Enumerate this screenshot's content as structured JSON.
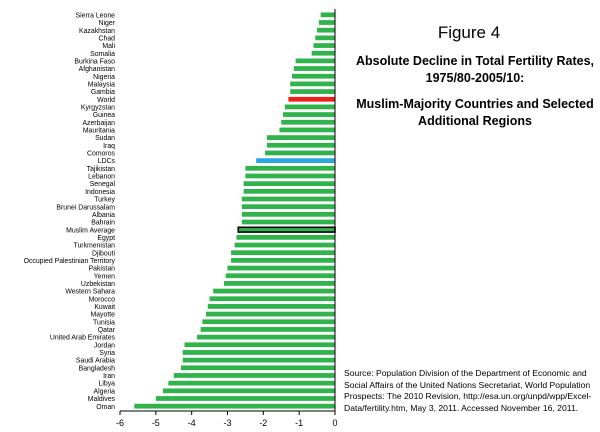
{
  "figure": {
    "title": "Figure 4",
    "subtitle": "Absolute Decline in Total Fertility Rates, 1975/80-2005/10:",
    "subtitle2": "Muslim-Majority Countries and Selected Additional Regions",
    "source": "Source: Population Division of the Department of Economic and Social Affairs of the United Nations Secretariat, World Population Prospects: The 2010 Revision, http://esa.un.org/unpd/wpp/Excel-Data/fertility.htm, May 3, 2011. Accessed November 16, 2011."
  },
  "colors": {
    "bar": "#2fb34a",
    "world": "#e8231c",
    "ldcs": "#29a8e0",
    "muslim_average_outline": "#000000",
    "axis": "#000000"
  },
  "chart_data": {
    "type": "bar",
    "orientation": "horizontal",
    "categories": [
      "Sierra Leone",
      "Niger",
      "Kazakhstan",
      "Chad",
      "Mali",
      "Somalia",
      "Burkina Faso",
      "Afghanistan",
      "Nigeria",
      "Malaysia",
      "Gambia",
      "World",
      "Kyrgyzstan",
      "Guinea",
      "Azerbaijan",
      "Mauritania",
      "Sudan",
      "Iraq",
      "Comoros",
      "LDCs",
      "Tajikistan",
      "Lebanon",
      "Senegal",
      "Indonesia",
      "Turkey",
      "Brunei Darussalam",
      "Albania",
      "Bahrain",
      "Muslim Average",
      "Egypt",
      "Turkmenistan",
      "Djibouti",
      "Occupied Palestinian Territory",
      "Pakistan",
      "Yemen",
      "Uzbekistan",
      "Western Sahara",
      "Morocco",
      "Kuwait",
      "Mayotte",
      "Tunisia",
      "Qatar",
      "United Arab Emirates",
      "Jordan",
      "Syria",
      "Saudi Arabia",
      "Bangladesh",
      "Iran",
      "Libya",
      "Algeria",
      "Maldives",
      "Oman"
    ],
    "values": [
      -0.4,
      -0.45,
      -0.5,
      -0.55,
      -0.6,
      -0.65,
      -1.1,
      -1.15,
      -1.2,
      -1.25,
      -1.25,
      -1.3,
      -1.4,
      -1.45,
      -1.5,
      -1.55,
      -1.9,
      -1.9,
      -1.95,
      -2.2,
      -2.5,
      -2.5,
      -2.55,
      -2.55,
      -2.6,
      -2.6,
      -2.6,
      -2.6,
      -2.7,
      -2.75,
      -2.8,
      -2.9,
      -2.9,
      -3.0,
      -3.05,
      -3.1,
      -3.4,
      -3.5,
      -3.55,
      -3.6,
      -3.7,
      -3.75,
      -3.85,
      -4.2,
      -4.25,
      -4.25,
      -4.3,
      -4.5,
      -4.65,
      -4.8,
      -5.0,
      -5.6
    ],
    "highlights": {
      "World": "world",
      "LDCs": "ldcs",
      "Muslim Average": "outline"
    },
    "xlim": [
      -6,
      0
    ],
    "xticks": [
      -6,
      -5,
      -4,
      -3,
      -2,
      -1,
      0
    ],
    "grid": false,
    "legend": "none"
  }
}
